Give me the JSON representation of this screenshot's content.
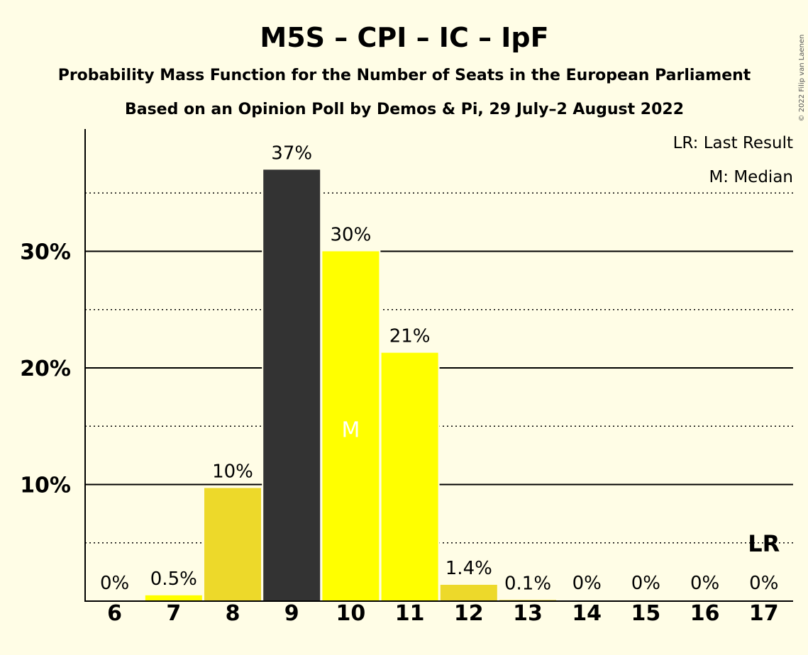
{
  "chart_data": {
    "type": "bar",
    "title": "M5S – CPI – IC – IpF",
    "subtitle": "Probability Mass Function for the Number of Seats in the European Parliament",
    "subtitle2": "Based on an Opinion Poll by Demos & Pi, 29 July–2 August 2022",
    "copyright": "© 2022 Filip van Laenen",
    "categories": [
      "6",
      "7",
      "8",
      "9",
      "10",
      "11",
      "12",
      "13",
      "14",
      "15",
      "16",
      "17"
    ],
    "values": [
      0,
      0.5,
      9.7,
      37,
      30,
      21.3,
      1.4,
      0.1,
      0,
      0,
      0,
      0
    ],
    "data_labels": [
      "0%",
      "0.5%",
      "10%",
      "37%",
      "30%",
      "21%",
      "1.4%",
      "0.1%",
      "0%",
      "0%",
      "0%",
      "0%"
    ],
    "bar_colors": [
      "#EDD92A",
      "#FFFF00",
      "#EDD92A",
      "#333333",
      "#FFFF00",
      "#FFFF00",
      "#EDD92A",
      "#EDD92A",
      "#EDD92A",
      "#EDD92A",
      "#EDD92A",
      "#EDD92A"
    ],
    "ylim": [
      0,
      40
    ],
    "yticks": [
      10,
      20,
      30
    ],
    "ytick_labels": [
      "10%",
      "20%",
      "30%"
    ],
    "median": {
      "category": "10",
      "label": "M"
    },
    "last_result": {
      "category": "17",
      "label": "LR"
    },
    "legend": [
      "LR: Last Result",
      "M: Median"
    ],
    "legend_position": "top-right",
    "grid": true
  }
}
